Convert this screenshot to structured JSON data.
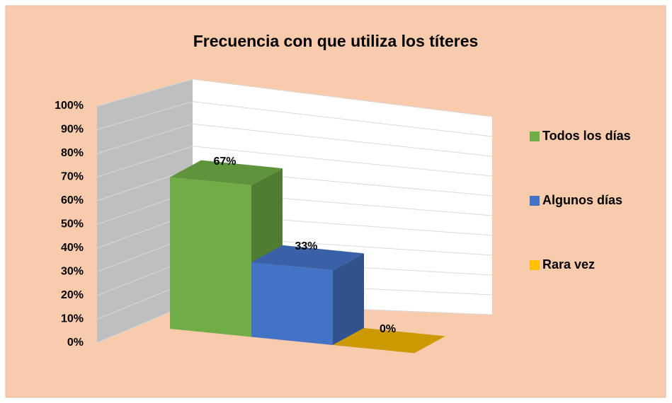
{
  "chart_data": {
    "type": "bar3d",
    "title": "Frecuencia con que utiliza los títeres",
    "categories": [
      "Todos los días",
      "Algunos días",
      "Rara vez"
    ],
    "values": [
      67,
      33,
      0
    ],
    "value_labels": [
      "67%",
      "33%",
      "0%"
    ],
    "colors": [
      "#70ad47",
      "#4472c4",
      "#ffc000"
    ],
    "ylim": [
      0,
      100
    ],
    "yticks": [
      {
        "value": 0,
        "label": "0%"
      },
      {
        "value": 10,
        "label": "10%"
      },
      {
        "value": 20,
        "label": "20%"
      },
      {
        "value": 30,
        "label": "30%"
      },
      {
        "value": 40,
        "label": "40%"
      },
      {
        "value": 50,
        "label": "50%"
      },
      {
        "value": 60,
        "label": "60%"
      },
      {
        "value": 70,
        "label": "70%"
      },
      {
        "value": 80,
        "label": "80%"
      },
      {
        "value": 90,
        "label": "90%"
      },
      {
        "value": 100,
        "label": "100%"
      }
    ],
    "grid": true,
    "legend": "right"
  }
}
